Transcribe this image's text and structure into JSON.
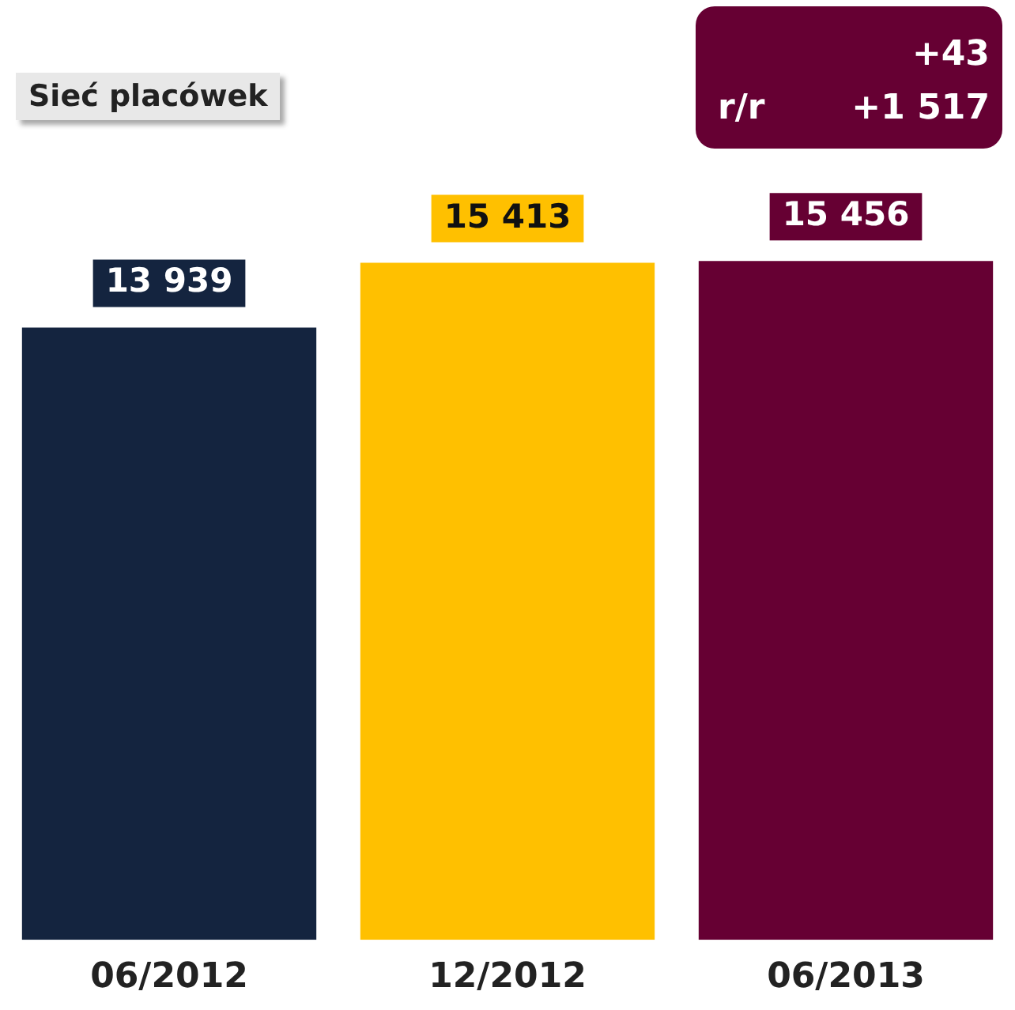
{
  "chart_data": {
    "type": "bar",
    "title": "Sieć placówek",
    "categories": [
      "06/2012",
      "12/2012",
      "06/2013"
    ],
    "values": [
      13939,
      15413,
      15456
    ],
    "colors": [
      "#14243f",
      "#ffc000",
      "#660033"
    ],
    "data_labels": true,
    "annotations": [
      "+43",
      "r/r",
      "+1 517"
    ]
  }
}
